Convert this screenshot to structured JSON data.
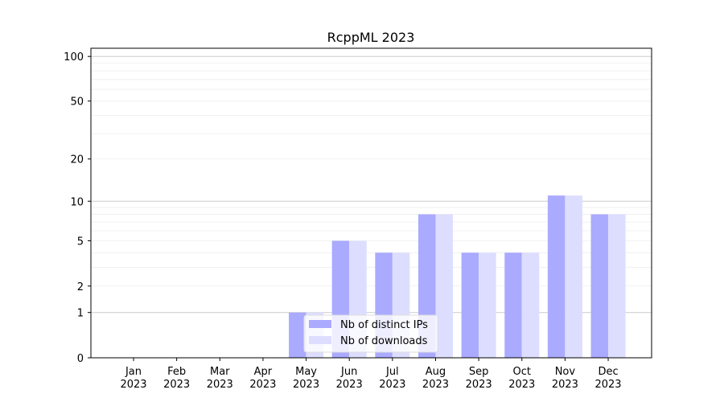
{
  "chart_data": {
    "type": "bar",
    "title": "RcppML 2023",
    "xlabel": "",
    "ylabel": "",
    "yscale": "log(1+y)",
    "ylim": [
      0,
      110
    ],
    "yticks": [
      0,
      1,
      2,
      5,
      10,
      20,
      50,
      100
    ],
    "ytick_labels": [
      "0",
      "1",
      "2",
      "5",
      "10",
      "20",
      "50",
      "100"
    ],
    "categories": [
      "Jan\n2023",
      "Feb\n2023",
      "Mar\n2023",
      "Apr\n2023",
      "May\n2023",
      "Jun\n2023",
      "Jul\n2023",
      "Aug\n2023",
      "Sep\n2023",
      "Oct\n2023",
      "Nov\n2023",
      "Dec\n2023"
    ],
    "series": [
      {
        "name": "Nb of distinct IPs",
        "color": "#aaaaff",
        "values": [
          0,
          0,
          0,
          0,
          1,
          5,
          4,
          8,
          4,
          4,
          11,
          8
        ]
      },
      {
        "name": "Nb of downloads",
        "color": "#ddddff",
        "values": [
          0,
          0,
          0,
          0,
          1,
          5,
          4,
          8,
          4,
          4,
          11,
          8
        ]
      }
    ],
    "grid": "horizontal",
    "legend": "lower center"
  }
}
